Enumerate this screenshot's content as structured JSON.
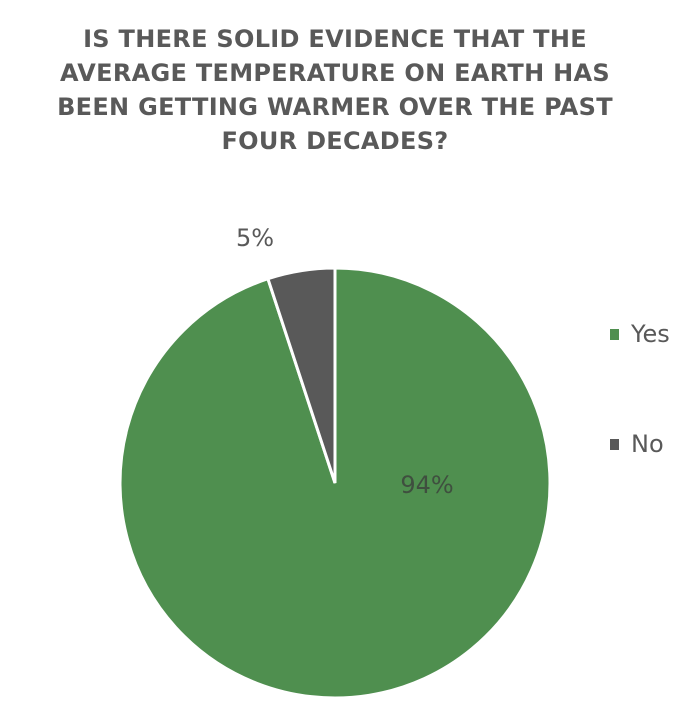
{
  "chart_data": {
    "type": "pie",
    "title": "IS THERE SOLID EVIDENCE THAT THE AVERAGE TEMPERATURE ON EARTH HAS BEEN GETTING WARMER OVER THE PAST FOUR DECADES?",
    "categories": [
      "Yes",
      "No"
    ],
    "values": [
      94,
      5
    ],
    "labels": [
      "94%",
      "5%"
    ],
    "colors": [
      "#4f8f4f",
      "#595959"
    ],
    "legend": "right"
  }
}
